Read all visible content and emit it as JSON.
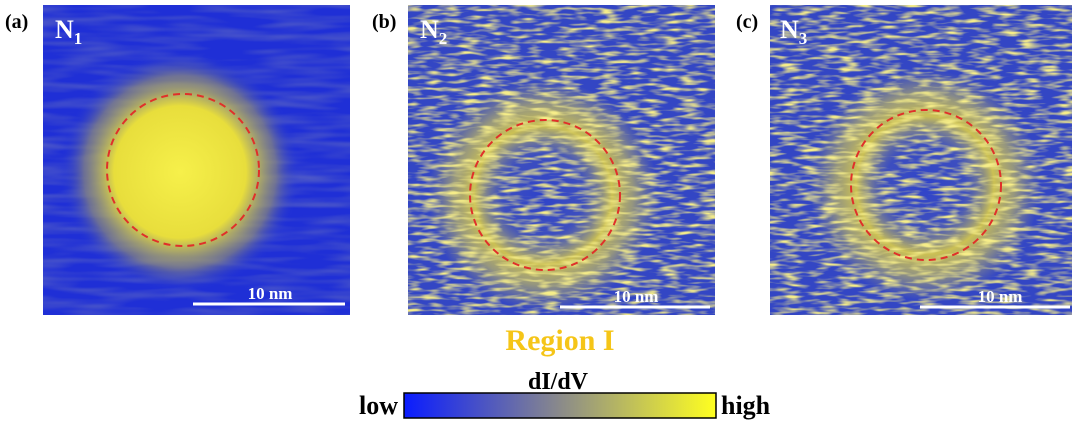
{
  "panels": [
    {
      "label": "(a)",
      "name": "N",
      "subscript": "1",
      "scale_bar": "10 nm"
    },
    {
      "label": "(b)",
      "name": "N",
      "subscript": "2",
      "scale_bar": "10 nm"
    },
    {
      "label": "(c)",
      "name": "N",
      "subscript": "3",
      "scale_bar": "10 nm"
    }
  ],
  "region": "Region I",
  "colorbar": {
    "title": "dI/dV",
    "low": "low",
    "high": "high"
  }
}
